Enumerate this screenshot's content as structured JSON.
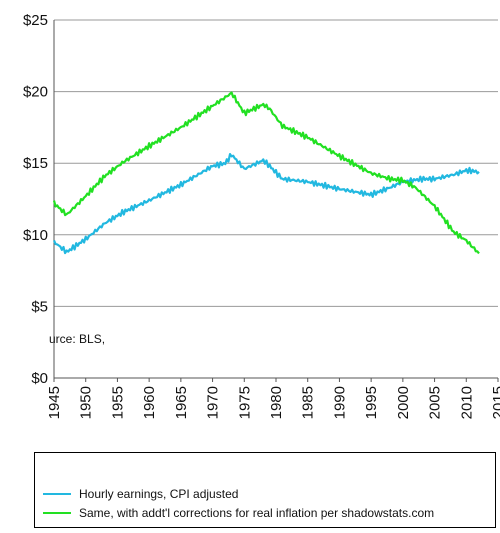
{
  "chart_data": {
    "type": "line",
    "title": "",
    "xlabel": "",
    "ylabel": "",
    "xlim": [
      1945,
      2015
    ],
    "ylim": [
      0,
      25
    ],
    "x_ticks": [
      "1945",
      "1950",
      "1955",
      "1960",
      "1965",
      "1970",
      "1975",
      "1980",
      "1985",
      "1990",
      "1995",
      "2000",
      "2005",
      "2010",
      "2015"
    ],
    "y_ticks": [
      "$0",
      "$5",
      "$10",
      "$15",
      "$20",
      "$25"
    ],
    "grid": "horizontal",
    "legend": "bottom",
    "series": [
      {
        "name": "Hourly earnings, CPI adjusted",
        "color": "#22b8e0",
        "x": [
          1945,
          1947,
          1950,
          1953,
          1956,
          1960,
          1965,
          1970,
          1972,
          1973,
          1975,
          1978,
          1979,
          1981,
          1985,
          1990,
          1995,
          1998,
          2000,
          2003,
          2005,
          2008,
          2010,
          2012
        ],
        "y": [
          9.5,
          8.8,
          9.7,
          10.8,
          11.6,
          12.4,
          13.5,
          14.8,
          15.0,
          15.6,
          14.6,
          15.2,
          14.8,
          13.9,
          13.7,
          13.2,
          12.8,
          13.3,
          13.7,
          13.9,
          13.9,
          14.2,
          14.5,
          14.4
        ]
      },
      {
        "name": "Same, with addt'l corrections for real inflation per shadowstats.com",
        "color": "#22e022",
        "x": [
          1945,
          1947,
          1950,
          1953,
          1956,
          1960,
          1965,
          1970,
          1972,
          1973,
          1975,
          1978,
          1979,
          1981,
          1985,
          1990,
          1995,
          1998,
          2000,
          2002,
          2005,
          2008,
          2010,
          2012
        ],
        "y": [
          12.2,
          11.4,
          12.7,
          14.1,
          15.1,
          16.2,
          17.5,
          19.0,
          19.6,
          19.9,
          18.5,
          19.1,
          18.8,
          17.6,
          16.8,
          15.5,
          14.3,
          13.9,
          13.8,
          13.3,
          12.0,
          10.2,
          9.6,
          8.7
        ]
      }
    ],
    "annotations": [
      "urce: BLS,"
    ]
  }
}
